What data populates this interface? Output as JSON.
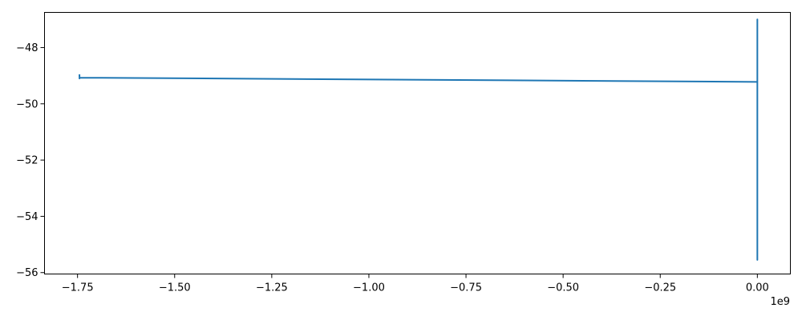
{
  "chart_data": {
    "type": "line",
    "title": "",
    "xlabel": "",
    "ylabel": "",
    "x_offset_label": "1e9",
    "xlim": [
      -1.835,
      0.085
    ],
    "ylim": [
      -56.05,
      -46.75
    ],
    "x_ticks": [
      -1.75,
      -1.5,
      -1.25,
      -1.0,
      -0.75,
      -0.5,
      -0.25,
      0.0
    ],
    "x_tick_labels": [
      "−1.75",
      "−1.50",
      "−1.25",
      "−1.00",
      "−0.75",
      "−0.50",
      "−0.25",
      "0.00"
    ],
    "y_ticks": [
      -56,
      -54,
      -52,
      -50,
      -48
    ],
    "y_tick_labels": [
      "−56",
      "−54",
      "−52",
      "−50",
      "−48"
    ],
    "grid": false,
    "series": [
      {
        "color": "#1f77b4",
        "x": [
          -1.745,
          -1.745,
          -1.745,
          0.0,
          0.0,
          0.0,
          0.0,
          0.0,
          0.0,
          0.0
        ],
        "y": [
          -48.95,
          -49.1,
          -49.07,
          -49.22,
          -48.6,
          -47.0,
          -48.5,
          -50.0,
          -55.55,
          -49.22
        ]
      }
    ]
  }
}
